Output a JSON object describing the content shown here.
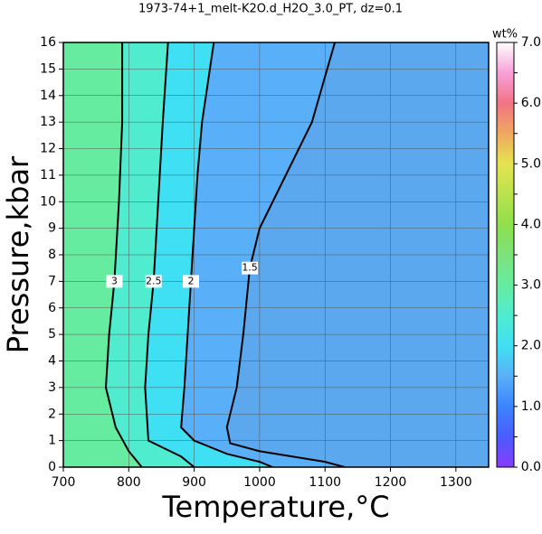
{
  "chart_data": {
    "type": "contour",
    "title": "1973-74+1_melt-K2O.d_H2O_3.0_PT, dz=0.1",
    "x_label": "Temperature,°C",
    "y_label": "Pressure,kbar",
    "xlim": [
      700,
      1350
    ],
    "xticks": [
      700,
      800,
      900,
      1000,
      1100,
      1200,
      1300
    ],
    "ylim": [
      0,
      16
    ],
    "yticks": [
      0,
      1,
      2,
      3,
      4,
      5,
      6,
      7,
      8,
      9,
      10,
      11,
      12,
      13,
      14,
      15,
      16
    ],
    "grid": true,
    "background_color": "#5ba8ef",
    "colorbar": {
      "label": "wt%",
      "lim": [
        0,
        7
      ],
      "ticks": [
        {
          "value": 0,
          "label": "0.0"
        },
        0.5,
        {
          "value": 1,
          "label": "1.0"
        },
        1.5,
        {
          "value": 2,
          "label": "2.0"
        },
        2.5,
        {
          "value": 3,
          "label": "3.0"
        },
        3.5,
        {
          "value": 4,
          "label": "4.0"
        },
        4.5,
        {
          "value": 5,
          "label": "5.0"
        },
        5.5,
        {
          "value": 6,
          "label": "6.0"
        },
        6.5,
        {
          "value": 7,
          "label": "7.0"
        }
      ],
      "colormap": [
        {
          "value": 0,
          "color": "#8a3cff"
        },
        {
          "value": 0.5,
          "color": "#4a5cff"
        },
        {
          "value": 1,
          "color": "#3c84ff"
        },
        {
          "value": 1.5,
          "color": "#5ab0f8"
        },
        {
          "value": 2,
          "color": "#40e0f4"
        },
        {
          "value": 2.5,
          "color": "#50ecd0"
        },
        {
          "value": 3,
          "color": "#66eca0"
        },
        {
          "value": 3.5,
          "color": "#7ce27a"
        },
        {
          "value": 4,
          "color": "#8fe04c"
        },
        {
          "value": 5,
          "color": "#e4e450"
        },
        {
          "value": 5.5,
          "color": "#f0a860"
        },
        {
          "value": 6,
          "color": "#f07484"
        },
        {
          "value": 6.5,
          "color": "#f8a0d8"
        },
        {
          "value": 7,
          "color": "#ffffff"
        }
      ]
    },
    "contours": [
      {
        "level": 1.5,
        "points": [
          [
            1115,
            16
          ],
          [
            1080,
            13
          ],
          [
            1040,
            11
          ],
          [
            1000,
            9
          ],
          [
            985,
            7.5
          ],
          [
            975,
            5
          ],
          [
            965,
            3
          ],
          [
            950,
            1.5
          ],
          [
            955,
            0.9
          ],
          [
            1000,
            0.6
          ],
          [
            1100,
            0.2
          ],
          [
            1130,
            0
          ]
        ]
      },
      {
        "level": 2,
        "points": [
          [
            930,
            16
          ],
          [
            912,
            13
          ],
          [
            905,
            11
          ],
          [
            900,
            9
          ],
          [
            895,
            7
          ],
          [
            890,
            5
          ],
          [
            885,
            3
          ],
          [
            880,
            1.5
          ],
          [
            900,
            1
          ],
          [
            950,
            0.5
          ],
          [
            1000,
            0.2
          ],
          [
            1020,
            0
          ]
        ]
      },
      {
        "level": 2.5,
        "points": [
          [
            860,
            16
          ],
          [
            852,
            13
          ],
          [
            845,
            10
          ],
          [
            838,
            7
          ],
          [
            830,
            5
          ],
          [
            825,
            3
          ],
          [
            830,
            1
          ],
          [
            880,
            0.4
          ],
          [
            900,
            0
          ]
        ]
      },
      {
        "level": 3,
        "points": [
          [
            790,
            16
          ],
          [
            790,
            13
          ],
          [
            785,
            10
          ],
          [
            778,
            7
          ],
          [
            770,
            5
          ],
          [
            765,
            3
          ],
          [
            780,
            1.5
          ],
          [
            800,
            0.6
          ],
          [
            820,
            0
          ]
        ]
      }
    ]
  }
}
